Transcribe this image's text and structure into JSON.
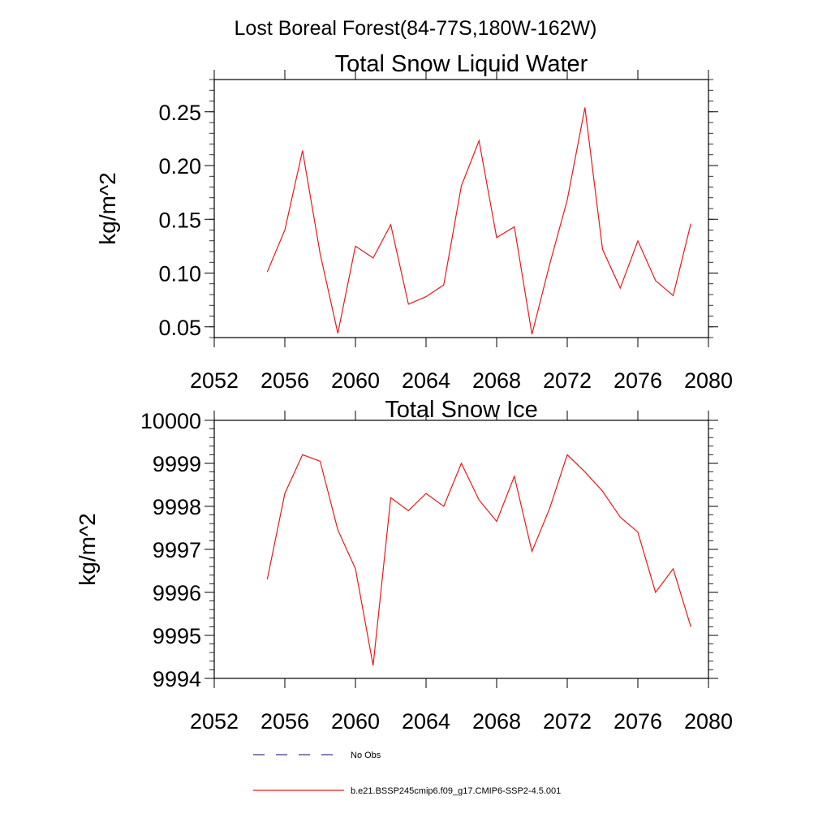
{
  "figure": {
    "title": "Lost Boreal Forest(84-77S,180W-162W)"
  },
  "legend": {
    "entries": [
      {
        "label": "No Obs",
        "style": "dashed",
        "color": "#3a3a8a"
      },
      {
        "label": "b.e21.BSSP245cmip6.f09_g17.CMIP6-SSP2-4.5.001",
        "style": "solid",
        "color": "#e8191b"
      }
    ]
  },
  "chart_data": [
    {
      "type": "line",
      "title": "Total Snow Liquid Water",
      "ylabel": "kg/m^2",
      "xlim": [
        2052,
        2080
      ],
      "ylim": [
        0.04,
        0.28
      ],
      "xticks": [
        2052,
        2056,
        2060,
        2064,
        2068,
        2072,
        2076,
        2080
      ],
      "xtick_labels": [
        "2052",
        "2056",
        "2060",
        "2064",
        "2068",
        "2072",
        "2076",
        "2080"
      ],
      "yticks": [
        0.05,
        0.1,
        0.15,
        0.2,
        0.25
      ],
      "ytick_labels": [
        "0.05",
        "0.10",
        "0.15",
        "0.20",
        "0.25"
      ],
      "grid": false,
      "series": [
        {
          "color": "#e8191b",
          "x": [
            2055,
            2056,
            2057,
            2058,
            2059,
            2060,
            2061,
            2062,
            2063,
            2064,
            2065,
            2066,
            2067,
            2068,
            2069,
            2070,
            2071,
            2072,
            2073,
            2074,
            2075,
            2076,
            2077,
            2078,
            2079
          ],
          "y": [
            0.101,
            0.14,
            0.214,
            0.118,
            0.044,
            0.125,
            0.114,
            0.145,
            0.071,
            0.078,
            0.089,
            0.181,
            0.223,
            0.133,
            0.143,
            0.043,
            0.108,
            0.168,
            0.254,
            0.122,
            0.086,
            0.13,
            0.093,
            0.079,
            0.146
          ]
        }
      ]
    },
    {
      "type": "line",
      "title": "Total Snow Ice",
      "ylabel": "kg/m^2",
      "xlim": [
        2052,
        2080
      ],
      "ylim": [
        9994,
        10000
      ],
      "xticks": [
        2052,
        2056,
        2060,
        2064,
        2068,
        2072,
        2076,
        2080
      ],
      "xtick_labels": [
        "2052",
        "2056",
        "2060",
        "2064",
        "2068",
        "2072",
        "2076",
        "2080"
      ],
      "yticks": [
        9994,
        9995,
        9996,
        9997,
        9998,
        9999,
        10000
      ],
      "ytick_labels": [
        "9994",
        "9995",
        "9996",
        "9997",
        "9998",
        "9999",
        "10000"
      ],
      "grid": false,
      "series": [
        {
          "color": "#e8191b",
          "x": [
            2055,
            2056,
            2057,
            2058,
            2059,
            2060,
            2061,
            2062,
            2063,
            2064,
            2065,
            2066,
            2067,
            2068,
            2069,
            2070,
            2071,
            2072,
            2073,
            2074,
            2075,
            2076,
            2077,
            2078,
            2079
          ],
          "y": [
            9996.3,
            9998.3,
            9999.2,
            9999.05,
            9997.45,
            9996.55,
            9994.3,
            9998.2,
            9997.9,
            9998.3,
            9998.0,
            9999.0,
            9998.15,
            9997.65,
            9998.7,
            9996.95,
            9997.95,
            9999.2,
            9998.8,
            9998.35,
            9997.75,
            9997.4,
            9996.0,
            9996.55,
            9995.2
          ]
        }
      ]
    }
  ]
}
